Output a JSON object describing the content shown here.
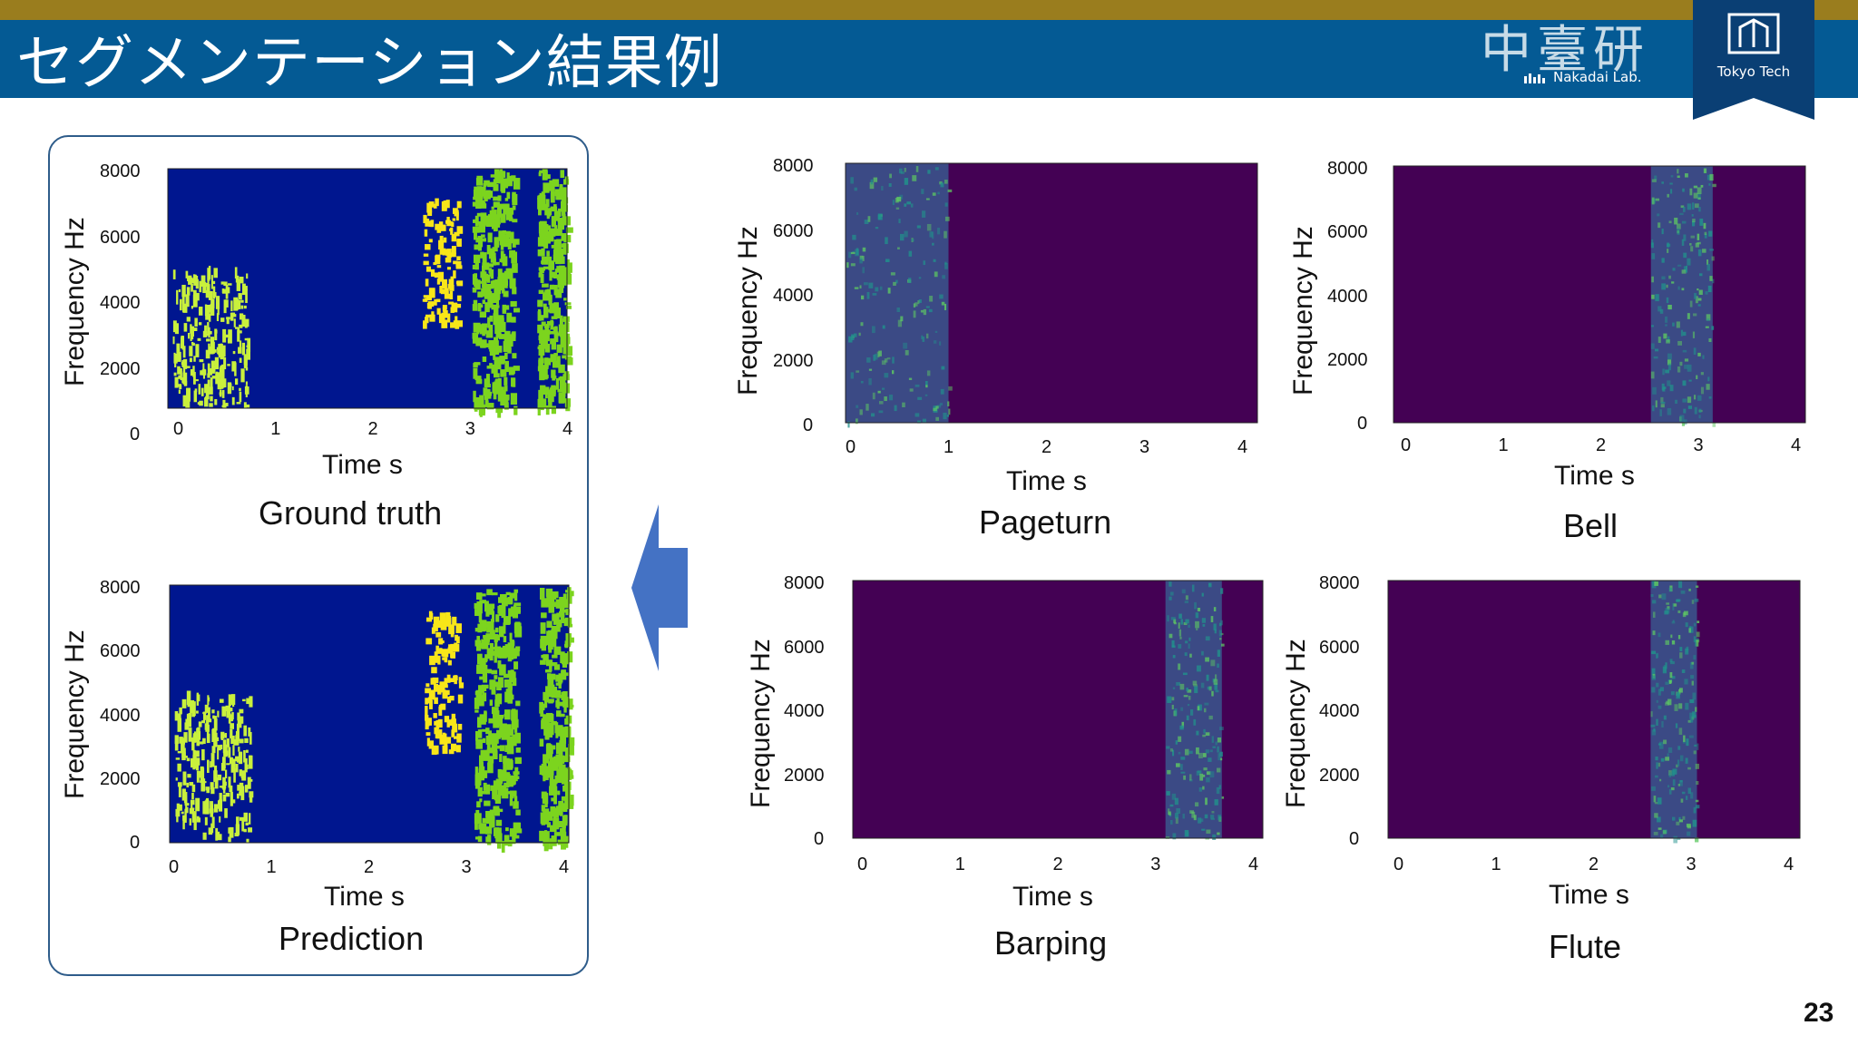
{
  "slide": {
    "title": "セグメンテーション結果例",
    "lab_name": "中臺研",
    "lab_name_en": "Nakadai Lab.",
    "school_name": "Tokyo Tech",
    "page_number": "23"
  },
  "colors": {
    "top_strip": "#9a7d1e",
    "title_bar": "#045a94",
    "panel_border": "#2e5c8a",
    "arrow": "#4472c4",
    "seg_background": "#00168f",
    "seg_class_green": "#7cd41e",
    "seg_class_lime": "#c9f03c",
    "seg_class_yellow": "#f8e619",
    "spec_background": "#440154",
    "spec_low": "#3b528b",
    "spec_mid": "#21918c",
    "spec_high": "#5ec962"
  },
  "chart_data": [
    {
      "id": "ground_truth",
      "type": "heatmap",
      "title": "Ground truth",
      "xlabel": "Time s",
      "ylabel": "Frequency Hz",
      "x_ticks": [
        "0",
        "1",
        "2",
        "3",
        "4"
      ],
      "y_ticks": [
        "8000",
        "6000",
        "4000",
        "2000",
        "0"
      ],
      "xlim": [
        0,
        4
      ],
      "ylim": [
        0,
        8000
      ]
    },
    {
      "id": "prediction",
      "type": "heatmap",
      "title": "Prediction",
      "xlabel": "Time s",
      "ylabel": "Frequency Hz",
      "x_ticks": [
        "0",
        "1",
        "2",
        "3",
        "4"
      ],
      "y_ticks": [
        "8000",
        "6000",
        "4000",
        "2000",
        "0"
      ],
      "xlim": [
        0,
        4
      ],
      "ylim": [
        0,
        8000
      ]
    },
    {
      "id": "pageturn",
      "type": "heatmap",
      "title": "Pageturn",
      "xlabel": "Time s",
      "ylabel": "Frequency Hz",
      "x_ticks": [
        "0",
        "1",
        "2",
        "3",
        "4"
      ],
      "y_ticks": [
        "8000",
        "6000",
        "4000",
        "2000",
        "0"
      ],
      "xlim": [
        0,
        4
      ],
      "ylim": [
        0,
        8000
      ],
      "active_time_range": [
        0,
        1.0
      ]
    },
    {
      "id": "bell",
      "type": "heatmap",
      "title": "Bell",
      "xlabel": "Time s",
      "ylabel": "Frequency Hz",
      "x_ticks": [
        "0",
        "1",
        "2",
        "3",
        "4"
      ],
      "y_ticks": [
        "8000",
        "6000",
        "4000",
        "2000",
        "0"
      ],
      "xlim": [
        0,
        4
      ],
      "ylim": [
        0,
        8000
      ],
      "active_time_range": [
        2.5,
        3.1
      ]
    },
    {
      "id": "barping",
      "type": "heatmap",
      "title": "Barping",
      "xlabel": "Time s",
      "ylabel": "Frequency Hz",
      "x_ticks": [
        "0",
        "1",
        "2",
        "3",
        "4"
      ],
      "y_ticks": [
        "8000",
        "6000",
        "4000",
        "2000",
        "0"
      ],
      "xlim": [
        0,
        4
      ],
      "ylim": [
        0,
        8000
      ],
      "active_time_range": [
        3.05,
        3.6
      ]
    },
    {
      "id": "flute",
      "type": "heatmap",
      "title": "Flute",
      "xlabel": "Time s",
      "ylabel": "Frequency Hz",
      "x_ticks": [
        "0",
        "1",
        "2",
        "3",
        "4"
      ],
      "y_ticks": [
        "8000",
        "6000",
        "4000",
        "2000",
        "0"
      ],
      "xlim": [
        0,
        4
      ],
      "ylim": [
        0,
        8000
      ],
      "active_time_range": [
        2.55,
        3.0
      ]
    }
  ]
}
